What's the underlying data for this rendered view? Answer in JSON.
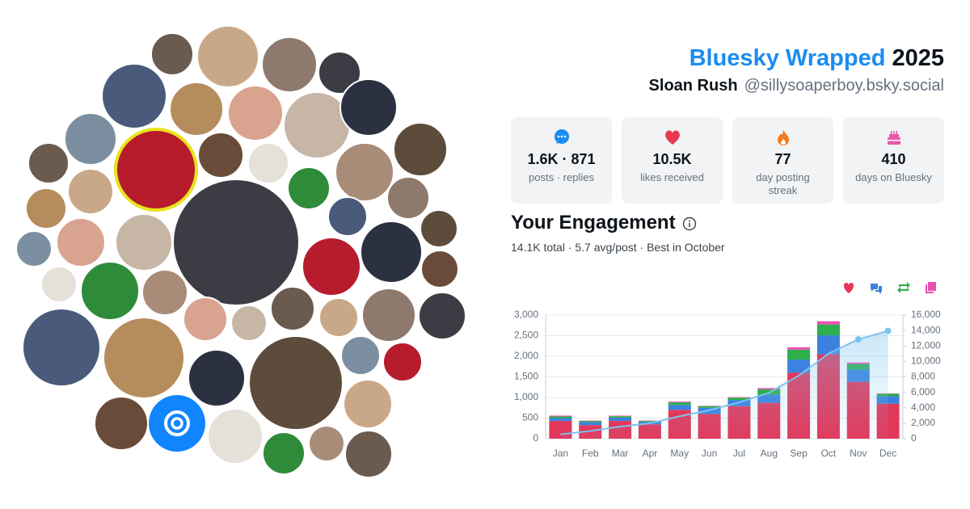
{
  "header": {
    "brand": "Bluesky Wrapped",
    "year": "2025",
    "name": "Sloan Rush",
    "handle": "@sillysoaperboy.bsky.social"
  },
  "stats": [
    {
      "value": "1.6K · 871",
      "label": "posts · replies"
    },
    {
      "value": "10.5K",
      "label": "likes received"
    },
    {
      "value": "77",
      "label": "day posting streak"
    },
    {
      "value": "410",
      "label": "days on Bluesky"
    }
  ],
  "engagement": {
    "title": "Your Engagement",
    "summary": "14.1K total · 5.7 avg/post · Best in October"
  },
  "chart_data": {
    "type": "bar",
    "stacked": true,
    "categories": [
      "Jan",
      "Feb",
      "Mar",
      "Apr",
      "May",
      "Jun",
      "Jul",
      "Aug",
      "Sep",
      "Oct",
      "Nov",
      "Dec"
    ],
    "series": [
      {
        "color": "#e2385a",
        "values": [
          430,
          330,
          430,
          350,
          700,
          600,
          790,
          870,
          1600,
          2050,
          1380,
          850
        ]
      },
      {
        "color": "#3b82e0",
        "values": [
          70,
          70,
          80,
          60,
          120,
          150,
          150,
          200,
          320,
          460,
          300,
          180
        ]
      },
      {
        "color": "#2bb04a",
        "values": [
          40,
          30,
          35,
          20,
          60,
          40,
          55,
          130,
          240,
          260,
          130,
          60
        ]
      },
      {
        "color": "#e84fb3",
        "values": [
          20,
          10,
          15,
          10,
          20,
          10,
          15,
          30,
          60,
          80,
          40,
          10
        ]
      },
      {
        "type": "line",
        "axis": "y2",
        "color": "#7cc3ee",
        "values": [
          560,
          1000,
          1560,
          2000,
          2900,
          3700,
          4710,
          5940,
          8160,
          11010,
          12860,
          13960
        ]
      }
    ],
    "ylim": [
      0,
      3000
    ],
    "yticks": [
      0,
      500,
      {
        "value": 1000,
        "label": "1,000"
      },
      {
        "value": 1500,
        "label": "1,500"
      },
      {
        "value": 2000,
        "label": "2,000"
      },
      {
        "value": 2500,
        "label": "2,500"
      },
      {
        "value": 3000,
        "label": "3,000"
      }
    ],
    "y2lim": [
      0,
      16000
    ],
    "y2ticks": [
      0,
      {
        "value": 2000,
        "label": "2,000"
      },
      {
        "value": 4000,
        "label": "4,000"
      },
      {
        "value": 6000,
        "label": "6,000"
      },
      {
        "value": 8000,
        "label": "8,000"
      },
      {
        "value": 10000,
        "label": "10,000"
      },
      {
        "value": 12000,
        "label": "12,000"
      },
      {
        "value": 14000,
        "label": "14,000"
      },
      {
        "value": 16000,
        "label": "16,000"
      }
    ],
    "grid": true
  }
}
